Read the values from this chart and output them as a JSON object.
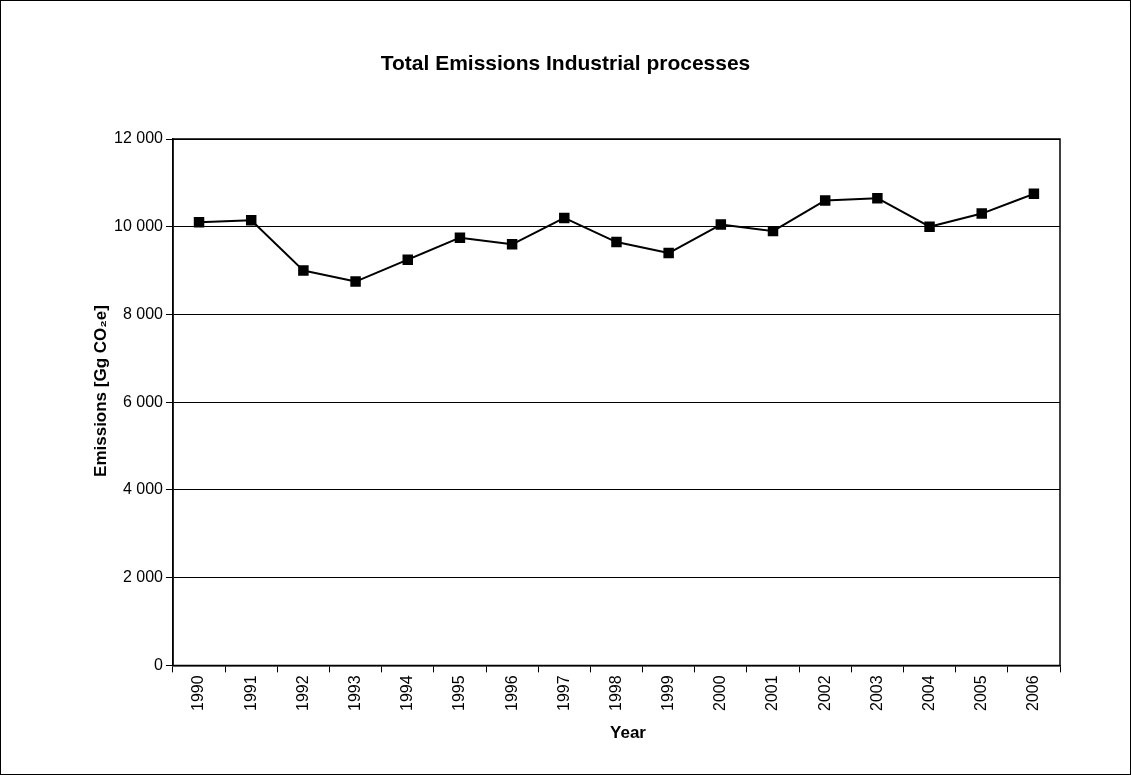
{
  "chart_data": {
    "type": "line",
    "title": "Total Emissions Industrial processes",
    "xlabel": "Year",
    "ylabel": "Emissions [Gg  CO₂e]",
    "categories": [
      "1990",
      "1991",
      "1992",
      "1993",
      "1994",
      "1995",
      "1996",
      "1997",
      "1998",
      "1999",
      "2000",
      "2001",
      "2002",
      "2003",
      "2004",
      "2005",
      "2006"
    ],
    "series": [
      {
        "color": "#000000",
        "values": [
          10100,
          10150,
          9000,
          8750,
          9250,
          9750,
          9600,
          10200,
          9650,
          9400,
          10050,
          9900,
          10600,
          10650,
          10000,
          10300,
          10750
        ]
      }
    ],
    "ylim": [
      0,
      12000
    ],
    "yticks": [
      {
        "value": 0,
        "label": "0"
      },
      {
        "value": 2000,
        "label": "2 000"
      },
      {
        "value": 4000,
        "label": "4 000"
      },
      {
        "value": 6000,
        "label": "6 000"
      },
      {
        "value": 8000,
        "label": "8 000"
      },
      {
        "value": 10000,
        "label": "10 000"
      },
      {
        "value": 12000,
        "label": "12 000"
      }
    ],
    "grid": "y",
    "legend": false,
    "marker": "square",
    "line_style": "solid"
  }
}
